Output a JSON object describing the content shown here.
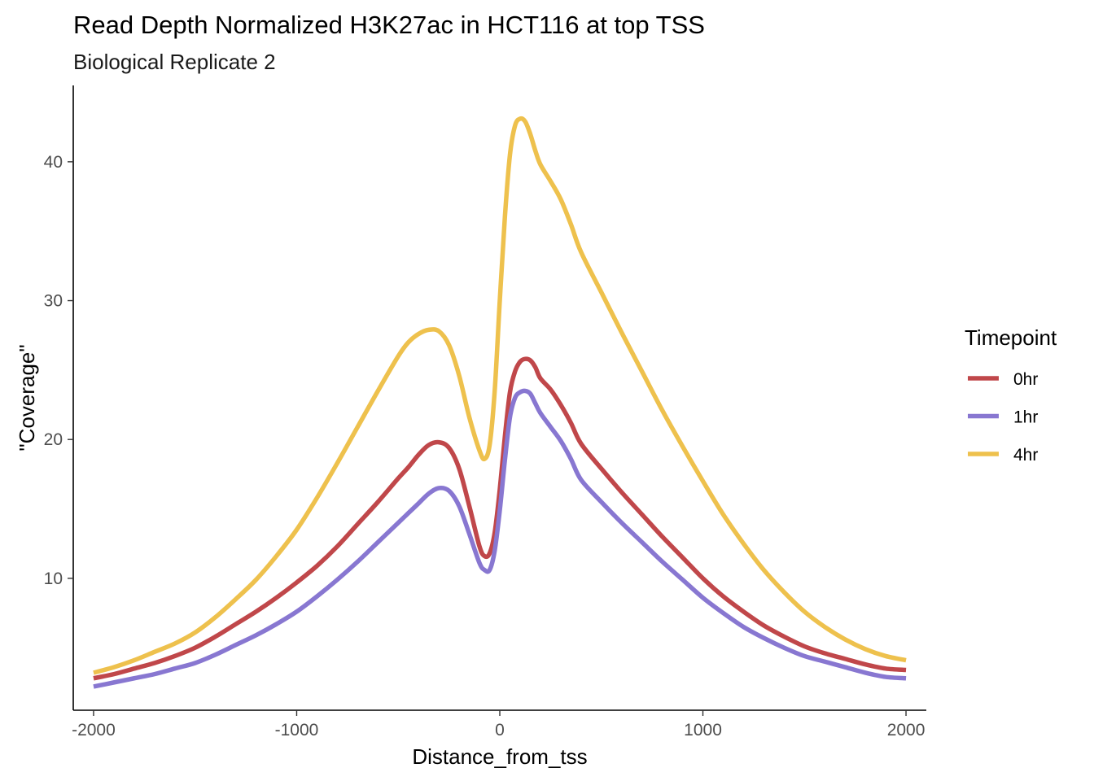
{
  "chart_data": {
    "type": "line",
    "title": "Read Depth Normalized H3K27ac in HCT116 at top TSS",
    "subtitle": "Biological Replicate 2",
    "xlabel": "Distance_from_tss",
    "ylabel": "\"Coverage\"",
    "xlim": [
      -2100,
      2100
    ],
    "ylim": [
      0.5,
      45.5
    ],
    "x_ticks": [
      -2000,
      -1000,
      0,
      1000,
      2000
    ],
    "x_tick_labels": [
      "-2000",
      "-1000",
      "0",
      "1000",
      "2000"
    ],
    "y_ticks": [
      10,
      20,
      30,
      40
    ],
    "y_tick_labels": [
      "10",
      "20",
      "30",
      "40"
    ],
    "grid": false,
    "legend": {
      "title": "Timepoint",
      "position": "right"
    },
    "x": [
      -2000,
      -1900,
      -1800,
      -1700,
      -1600,
      -1500,
      -1400,
      -1300,
      -1200,
      -1100,
      -1000,
      -900,
      -800,
      -700,
      -600,
      -500,
      -450,
      -400,
      -350,
      -300,
      -250,
      -200,
      -150,
      -100,
      -75,
      -50,
      -25,
      0,
      25,
      50,
      75,
      100,
      125,
      150,
      175,
      200,
      250,
      300,
      350,
      400,
      500,
      600,
      700,
      800,
      900,
      1000,
      1100,
      1200,
      1300,
      1400,
      1500,
      1600,
      1700,
      1800,
      1900,
      2000
    ],
    "series": [
      {
        "name": "0hr",
        "color": "#c0474a",
        "values": [
          2.8,
          3.1,
          3.5,
          3.9,
          4.4,
          5.0,
          5.8,
          6.7,
          7.6,
          8.6,
          9.7,
          10.9,
          12.3,
          13.9,
          15.5,
          17.2,
          18.0,
          18.9,
          19.6,
          19.8,
          19.4,
          17.9,
          15.2,
          12.3,
          11.6,
          11.8,
          13.3,
          16.4,
          20.2,
          23.4,
          24.9,
          25.6,
          25.8,
          25.7,
          25.2,
          24.4,
          23.6,
          22.5,
          21.2,
          19.7,
          17.9,
          16.2,
          14.6,
          13.0,
          11.5,
          10.0,
          8.7,
          7.6,
          6.6,
          5.8,
          5.1,
          4.6,
          4.2,
          3.8,
          3.5,
          3.4
        ]
      },
      {
        "name": "1hr",
        "color": "#8877d1",
        "values": [
          2.2,
          2.5,
          2.8,
          3.1,
          3.5,
          3.9,
          4.5,
          5.2,
          5.9,
          6.7,
          7.6,
          8.7,
          9.9,
          11.2,
          12.6,
          14.0,
          14.7,
          15.4,
          16.1,
          16.5,
          16.3,
          15.2,
          13.2,
          11.1,
          10.6,
          10.6,
          12.0,
          14.9,
          18.5,
          21.6,
          23.0,
          23.4,
          23.5,
          23.3,
          22.6,
          21.9,
          20.9,
          19.9,
          18.6,
          17.1,
          15.5,
          14.0,
          12.6,
          11.2,
          9.9,
          8.6,
          7.5,
          6.5,
          5.7,
          5.0,
          4.4,
          4.0,
          3.6,
          3.2,
          2.9,
          2.8
        ]
      },
      {
        "name": "4hr",
        "color": "#eec14d",
        "values": [
          3.2,
          3.6,
          4.1,
          4.7,
          5.3,
          6.1,
          7.2,
          8.5,
          9.9,
          11.6,
          13.5,
          15.8,
          18.3,
          20.9,
          23.5,
          26.0,
          27.0,
          27.6,
          27.9,
          27.8,
          26.8,
          24.6,
          21.6,
          19.2,
          18.6,
          19.6,
          23.5,
          30.0,
          36.0,
          40.5,
          42.6,
          43.1,
          42.9,
          42.0,
          40.8,
          39.8,
          38.6,
          37.3,
          35.5,
          33.5,
          30.6,
          27.7,
          24.9,
          22.1,
          19.5,
          17.0,
          14.6,
          12.5,
          10.6,
          9.0,
          7.6,
          6.5,
          5.6,
          4.9,
          4.4,
          4.1
        ]
      }
    ]
  }
}
